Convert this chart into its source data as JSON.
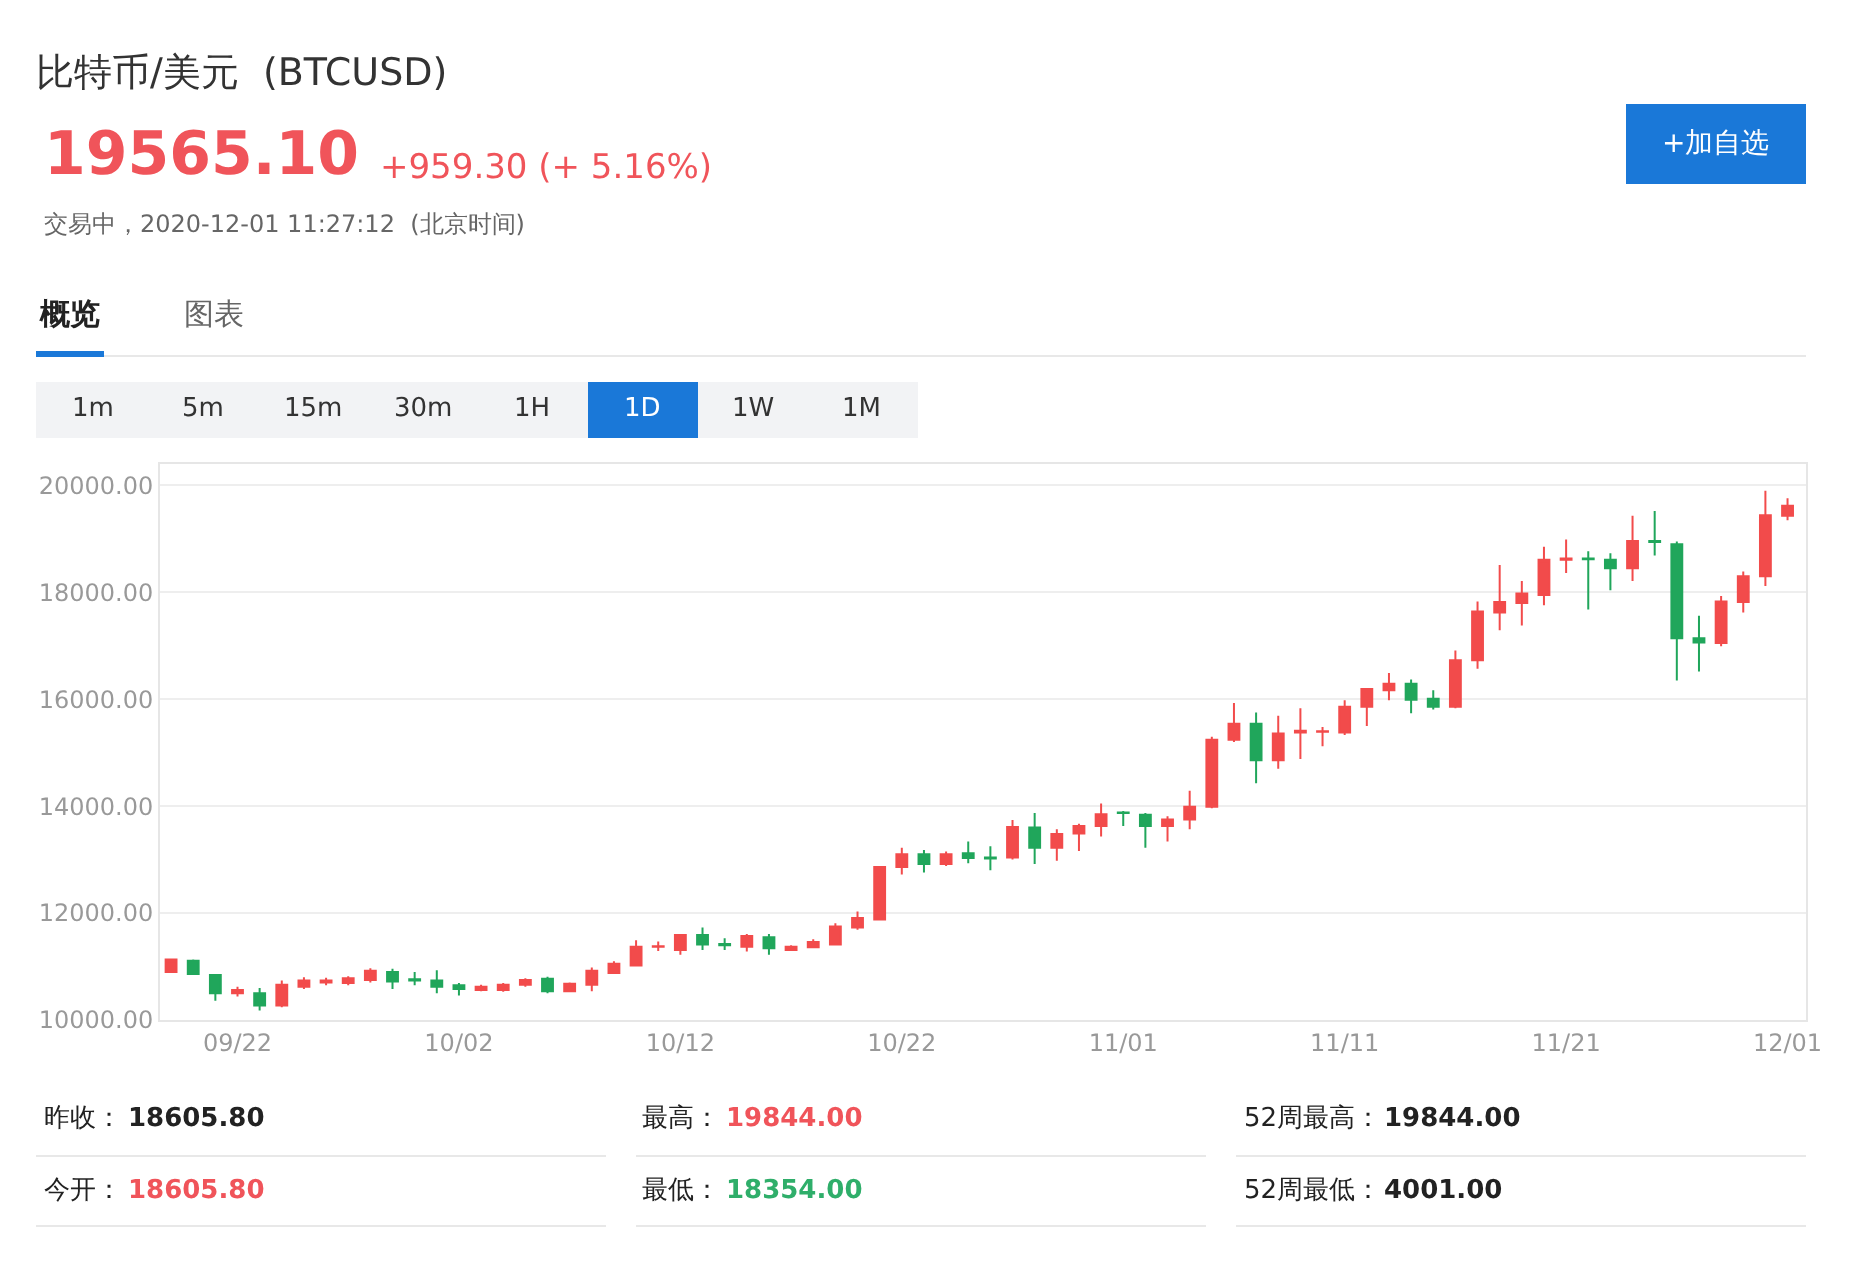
{
  "chart_data": {
    "type": "candlestick",
    "title": "比特币/美元  (BTCUSD)",
    "annotations": [
      "19565.10",
      "+959.30 (+ 5.16%)",
      "交易中，2020-12-01 11:27:12  (北京时间)",
      "+加自选",
      "概览",
      "图表",
      "1m",
      "5m",
      "15m",
      "30m",
      "1H",
      "1D",
      "1W",
      "1M",
      "昨收：",
      "18605.80",
      "最高：",
      "19844.00",
      "52周最高：",
      "19844.00",
      "今开：",
      "18605.80",
      "最低：",
      "18354.00",
      "52周最低：",
      "4001.00"
    ],
    "x": [
      "2020-09-19",
      "2020-09-20",
      "2020-09-21",
      "2020-09-22",
      "2020-09-23",
      "2020-09-24",
      "2020-09-25",
      "2020-09-26",
      "2020-09-27",
      "2020-09-28",
      "2020-09-29",
      "2020-09-30",
      "2020-10-01",
      "2020-10-02",
      "2020-10-03",
      "2020-10-04",
      "2020-10-05",
      "2020-10-06",
      "2020-10-07",
      "2020-10-08",
      "2020-10-09",
      "2020-10-10",
      "2020-10-11",
      "2020-10-12",
      "2020-10-13",
      "2020-10-14",
      "2020-10-15",
      "2020-10-16",
      "2020-10-17",
      "2020-10-18",
      "2020-10-19",
      "2020-10-20",
      "2020-10-21",
      "2020-10-22",
      "2020-10-23",
      "2020-10-24",
      "2020-10-25",
      "2020-10-26",
      "2020-10-27",
      "2020-10-28",
      "2020-10-29",
      "2020-10-30",
      "2020-10-31",
      "2020-11-01",
      "2020-11-02",
      "2020-11-03",
      "2020-11-04",
      "2020-11-05",
      "2020-11-06",
      "2020-11-07",
      "2020-11-08",
      "2020-11-09",
      "2020-11-10",
      "2020-11-11",
      "2020-11-12",
      "2020-11-13",
      "2020-11-14",
      "2020-11-15",
      "2020-11-16",
      "2020-11-17",
      "2020-11-18",
      "2020-11-19",
      "2020-11-20",
      "2020-11-21",
      "2020-11-22",
      "2020-11-23",
      "2020-11-24",
      "2020-11-25",
      "2020-11-26",
      "2020-11-27",
      "2020-11-28",
      "2020-11-29",
      "2020-11-30",
      "2020-12-01"
    ],
    "ohlc": [
      [
        10900,
        11150,
        10880,
        11130
      ],
      [
        11110,
        11130,
        10840,
        10860
      ],
      [
        10840,
        10850,
        10360,
        10500
      ],
      [
        10500,
        10620,
        10440,
        10560
      ],
      [
        10500,
        10600,
        10180,
        10270
      ],
      [
        10270,
        10740,
        10240,
        10660
      ],
      [
        10620,
        10800,
        10580,
        10740
      ],
      [
        10700,
        10790,
        10650,
        10740
      ],
      [
        10690,
        10820,
        10650,
        10780
      ],
      [
        10750,
        10970,
        10700,
        10920
      ],
      [
        10900,
        10960,
        10580,
        10720
      ],
      [
        10760,
        10900,
        10650,
        10740
      ],
      [
        10740,
        10930,
        10500,
        10620
      ],
      [
        10650,
        10690,
        10460,
        10580
      ],
      [
        10560,
        10660,
        10540,
        10620
      ],
      [
        10560,
        10690,
        10530,
        10660
      ],
      [
        10660,
        10780,
        10620,
        10750
      ],
      [
        10770,
        10810,
        10500,
        10540
      ],
      [
        10540,
        10700,
        10520,
        10680
      ],
      [
        10660,
        10980,
        10540,
        10920
      ],
      [
        10880,
        11100,
        10860,
        11050
      ],
      [
        11020,
        11490,
        11010,
        11370
      ],
      [
        11370,
        11470,
        11290,
        11380
      ],
      [
        11310,
        11610,
        11220,
        11590
      ],
      [
        11590,
        11730,
        11310,
        11410
      ],
      [
        11420,
        11530,
        11310,
        11400
      ],
      [
        11370,
        11610,
        11280,
        11570
      ],
      [
        11550,
        11610,
        11220,
        11340
      ],
      [
        11310,
        11400,
        11290,
        11370
      ],
      [
        11360,
        11510,
        11340,
        11460
      ],
      [
        11410,
        11810,
        11400,
        11750
      ],
      [
        11730,
        12030,
        11690,
        11910
      ],
      [
        11880,
        12880,
        11870,
        12860
      ],
      [
        12860,
        13220,
        12720,
        13100
      ],
      [
        13100,
        13180,
        12760,
        12920
      ],
      [
        12920,
        13150,
        12880,
        13100
      ],
      [
        13120,
        13340,
        12930,
        13030
      ],
      [
        13040,
        13250,
        12800,
        13020
      ],
      [
        13040,
        13740,
        13000,
        13610
      ],
      [
        13600,
        13870,
        12920,
        13220
      ],
      [
        13220,
        13570,
        12980,
        13480
      ],
      [
        13490,
        13670,
        13160,
        13630
      ],
      [
        13630,
        14050,
        13430,
        13850
      ],
      [
        13880,
        13910,
        13630,
        13870
      ],
      [
        13840,
        13870,
        13220,
        13630
      ],
      [
        13630,
        13810,
        13340,
        13750
      ],
      [
        13750,
        14290,
        13570,
        13990
      ],
      [
        13990,
        15300,
        13960,
        15240
      ],
      [
        15240,
        15930,
        15200,
        15540
      ],
      [
        15540,
        15750,
        14430,
        14860
      ],
      [
        14860,
        15690,
        14700,
        15360
      ],
      [
        15380,
        15830,
        14880,
        15410
      ],
      [
        15390,
        15480,
        15120,
        15400
      ],
      [
        15380,
        15980,
        15330,
        15860
      ],
      [
        15860,
        16200,
        15500,
        16190
      ],
      [
        16170,
        16490,
        15980,
        16290
      ],
      [
        16290,
        16370,
        15740,
        15990
      ],
      [
        16010,
        16170,
        15810,
        15860
      ],
      [
        15860,
        16910,
        15830,
        16730
      ],
      [
        16730,
        17830,
        16570,
        17640
      ],
      [
        17620,
        18510,
        17290,
        17820
      ],
      [
        17800,
        18210,
        17380,
        17980
      ],
      [
        17950,
        18850,
        17760,
        18610
      ],
      [
        18610,
        18990,
        18360,
        18630
      ],
      [
        18630,
        18770,
        17680,
        18620
      ],
      [
        18610,
        18730,
        18040,
        18450
      ],
      [
        18450,
        19430,
        18210,
        18960
      ],
      [
        18960,
        19520,
        18690,
        18940
      ],
      [
        18900,
        18950,
        16350,
        17140
      ],
      [
        17140,
        17560,
        16520,
        17060
      ],
      [
        17050,
        17930,
        16990,
        17830
      ],
      [
        17820,
        18390,
        17620,
        18300
      ],
      [
        18300,
        19900,
        18120,
        19440
      ],
      [
        19430,
        19760,
        19350,
        19620
      ]
    ],
    "colors": [
      "#f24b4b",
      "#20a65b",
      "#20a65b",
      "#f24b4b",
      "#20a65b",
      "#f24b4b",
      "#f24b4b",
      "#f24b4b",
      "#f24b4b",
      "#f24b4b",
      "#20a65b",
      "#20a65b",
      "#20a65b",
      "#20a65b",
      "#f24b4b",
      "#f24b4b",
      "#f24b4b",
      "#20a65b",
      "#f24b4b",
      "#f24b4b",
      "#f24b4b",
      "#f24b4b",
      "#f24b4b",
      "#f24b4b",
      "#20a65b",
      "#20a65b",
      "#f24b4b",
      "#20a65b",
      "#f24b4b",
      "#f24b4b",
      "#f24b4b",
      "#f24b4b",
      "#f24b4b",
      "#f24b4b",
      "#20a65b",
      "#f24b4b",
      "#20a65b",
      "#20a65b",
      "#f24b4b",
      "#20a65b",
      "#f24b4b",
      "#f24b4b",
      "#f24b4b",
      "#20a65b",
      "#20a65b",
      "#f24b4b",
      "#f24b4b",
      "#f24b4b",
      "#f24b4b",
      "#20a65b",
      "#f24b4b",
      "#f24b4b",
      "#f24b4b",
      "#f24b4b",
      "#f24b4b",
      "#f24b4b",
      "#20a65b",
      "#20a65b",
      "#f24b4b",
      "#f24b4b",
      "#f24b4b",
      "#f24b4b",
      "#f24b4b",
      "#f24b4b",
      "#20a65b",
      "#20a65b",
      "#f24b4b",
      "#20a65b",
      "#20a65b",
      "#20a65b",
      "#f24b4b",
      "#f24b4b",
      "#f24b4b",
      "#f24b4b"
    ],
    "xlim": [
      "2020-09-18T12:00",
      "2020-12-01T20:00"
    ],
    "xticks": [
      {
        "value": "2020-09-22",
        "label": "09/22"
      },
      {
        "value": "2020-10-02",
        "label": "10/02"
      },
      {
        "value": "2020-10-12",
        "label": "10/12"
      },
      {
        "value": "2020-10-22",
        "label": "10/22"
      },
      {
        "value": "2020-11-01",
        "label": "11/01"
      },
      {
        "value": "2020-11-11",
        "label": "11/11"
      },
      {
        "value": "2020-11-21",
        "label": "11/21"
      },
      {
        "value": "2020-12-01",
        "label": "12/01"
      }
    ],
    "ylim": [
      10000,
      20400
    ],
    "yticks": [
      {
        "value": 10000,
        "label": "10000.00"
      },
      {
        "value": 12000,
        "label": "12000.00"
      },
      {
        "value": 14000,
        "label": "14000.00"
      },
      {
        "value": 16000,
        "label": "16000.00"
      },
      {
        "value": 18000,
        "label": "18000.00"
      },
      {
        "value": 20000,
        "label": "20000.00"
      }
    ],
    "grid": "y",
    "legend": false
  }
}
